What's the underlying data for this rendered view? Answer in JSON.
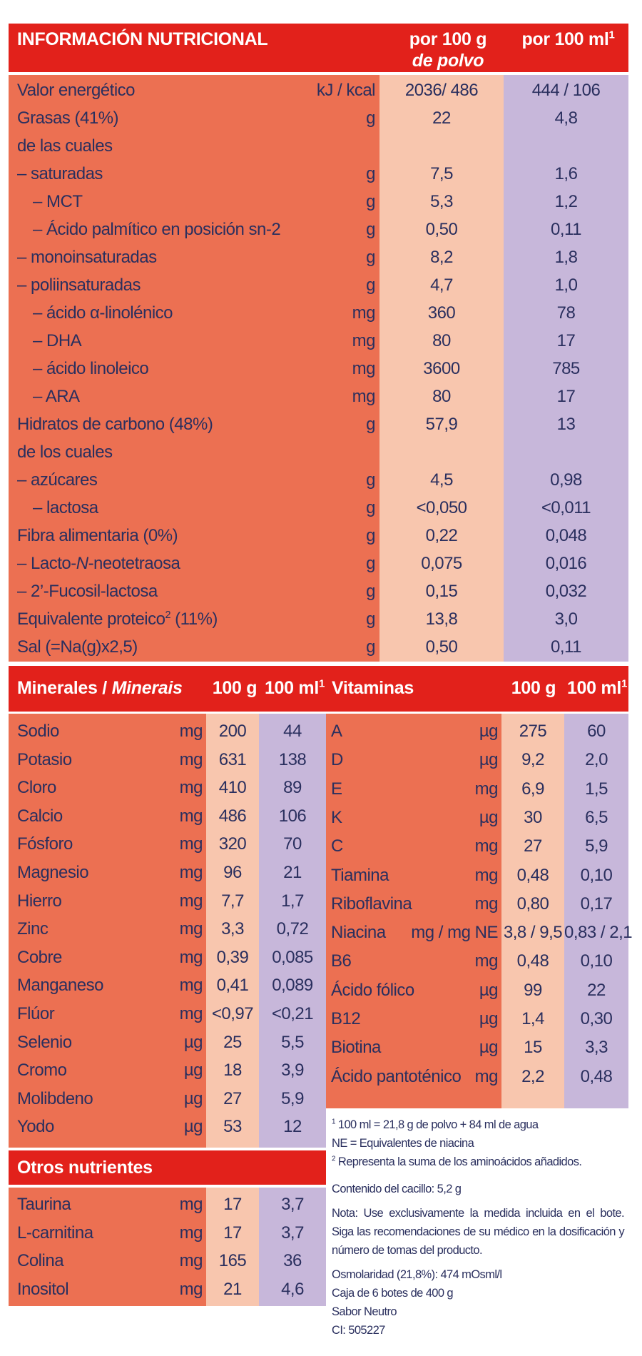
{
  "main": {
    "header": {
      "title": "INFORMACIÓN NUTRICIONAL",
      "col1a": "por 100 g",
      "col1b": "de polvo",
      "col2": "por 100 ml",
      "col2_sup": "1"
    },
    "rows": [
      {
        "label": "Valor energético",
        "unit": "kJ / kcal",
        "v100g": "2036/ 486",
        "v100ml": "444 / 106"
      },
      {
        "label": "Grasas (41%)",
        "unit": "g",
        "v100g": "22",
        "v100ml": "4,8"
      },
      {
        "label": "de las cuales",
        "unit": "",
        "v100g": "",
        "v100ml": ""
      },
      {
        "label": "– saturadas",
        "unit": "g",
        "v100g": "7,5",
        "v100ml": "1,6"
      },
      {
        "label": "– MCT",
        "unit": "g",
        "v100g": "5,3",
        "v100ml": "1,2"
      },
      {
        "label": "– Ácido palmítico en posición sn-2",
        "unit": "g",
        "v100g": "0,50",
        "v100ml": "0,11"
      },
      {
        "label": "– monoinsaturadas",
        "unit": "g",
        "v100g": "8,2",
        "v100ml": "1,8"
      },
      {
        "label": "– poliinsaturadas",
        "unit": "g",
        "v100g": "4,7",
        "v100ml": "1,0"
      },
      {
        "label": "– ácido α-linolénico",
        "unit": "mg",
        "v100g": "360",
        "v100ml": "78"
      },
      {
        "label": "– DHA",
        "unit": "mg",
        "v100g": "80",
        "v100ml": "17"
      },
      {
        "label": "– ácido linoleico",
        "unit": "mg",
        "v100g": "3600",
        "v100ml": "785"
      },
      {
        "label": "– ARA",
        "unit": "mg",
        "v100g": "80",
        "v100ml": "17"
      },
      {
        "label": "Hidratos de carbono (48%)",
        "unit": "g",
        "v100g": "57,9",
        "v100ml": "13"
      },
      {
        "label": "de los cuales",
        "unit": "",
        "v100g": "",
        "v100ml": ""
      },
      {
        "label": "– azúcares",
        "unit": "g",
        "v100g": "4,5",
        "v100ml": "0,98"
      },
      {
        "label": "– lactosa",
        "unit": "g",
        "v100g": "<0,050",
        "v100ml": "<0,011"
      },
      {
        "label": "Fibra alimentaria (0%)",
        "unit": "g",
        "v100g": "0,22",
        "v100ml": "0,048"
      },
      {
        "label": "– Lacto-N-neotetraosa",
        "unit": "g",
        "v100g": "0,075",
        "v100ml": "0,016"
      },
      {
        "label": "– 2’-Fucosil-lactosa",
        "unit": "g",
        "v100g": "0,15",
        "v100ml": "0,032"
      },
      {
        "label": "Equivalente proteico",
        "label_sup": "2",
        "label_after": " (11%)",
        "unit": "g",
        "v100g": "13,8",
        "v100ml": "3,0"
      },
      {
        "label": "Sal (=Na(g)x2,5)",
        "unit": "g",
        "v100g": "0,50",
        "v100ml": "0,11"
      }
    ]
  },
  "minerals": {
    "header": {
      "title": "Minerales / ",
      "title_it": "Minerais",
      "c1": "100 g",
      "c2": "100 ml",
      "c2_sup": "1"
    },
    "rows": [
      {
        "label": "Sodio",
        "unit": "mg",
        "v1": "200",
        "v2": "44"
      },
      {
        "label": "Potasio",
        "unit": "mg",
        "v1": "631",
        "v2": "138"
      },
      {
        "label": "Cloro",
        "unit": "mg",
        "v1": "410",
        "v2": "89"
      },
      {
        "label": "Calcio",
        "unit": "mg",
        "v1": "486",
        "v2": "106"
      },
      {
        "label": "Fósforo",
        "unit": "mg",
        "v1": "320",
        "v2": "70"
      },
      {
        "label": "Magnesio",
        "unit": "mg",
        "v1": "96",
        "v2": "21"
      },
      {
        "label": "Hierro",
        "unit": "mg",
        "v1": "7,7",
        "v2": "1,7"
      },
      {
        "label": "Zinc",
        "unit": "mg",
        "v1": "3,3",
        "v2": "0,72"
      },
      {
        "label": "Cobre",
        "unit": "mg",
        "v1": "0,39",
        "v2": "0,085"
      },
      {
        "label": "Manganeso",
        "unit": "mg",
        "v1": "0,41",
        "v2": "0,089"
      },
      {
        "label": "Flúor",
        "unit": "mg",
        "v1": "<0,97",
        "v2": "<0,21"
      },
      {
        "label": "Selenio",
        "unit": "µg",
        "v1": "25",
        "v2": "5,5"
      },
      {
        "label": "Cromo",
        "unit": "µg",
        "v1": "18",
        "v2": "3,9"
      },
      {
        "label": "Molibdeno",
        "unit": "µg",
        "v1": "27",
        "v2": "5,9"
      },
      {
        "label": "Yodo",
        "unit": "µg",
        "v1": "53",
        "v2": "12"
      }
    ]
  },
  "vitamins": {
    "header": {
      "title": "Vitaminas",
      "c1": "100 g",
      "c2": "100 ml",
      "c2_sup": "1"
    },
    "rows": [
      {
        "label": "A",
        "unit": "µg",
        "v1": "275",
        "v2": "60"
      },
      {
        "label": "D",
        "unit": "µg",
        "v1": "9,2",
        "v2": "2,0"
      },
      {
        "label": "E",
        "unit": "mg",
        "v1": "6,9",
        "v2": "1,5"
      },
      {
        "label": "K",
        "unit": "µg",
        "v1": "30",
        "v2": "6,5"
      },
      {
        "label": "C",
        "unit": "mg",
        "v1": "27",
        "v2": "5,9"
      },
      {
        "label": "Tiamina",
        "unit": "mg",
        "v1": "0,48",
        "v2": "0,10"
      },
      {
        "label": "Riboflavina",
        "unit": "mg",
        "v1": "0,80",
        "v2": "0,17"
      },
      {
        "label": "Niacina",
        "unit": "mg / mg NE",
        "v1": "3,8 / 9,5",
        "v2": "0,83 / 2,1"
      },
      {
        "label": "B6",
        "unit": "mg",
        "v1": "0,48",
        "v2": "0,10"
      },
      {
        "label": "Ácido fólico",
        "unit": "µg",
        "v1": "99",
        "v2": "22"
      },
      {
        "label": "B12",
        "unit": "µg",
        "v1": "1,4",
        "v2": "0,30"
      },
      {
        "label": "Biotina",
        "unit": "µg",
        "v1": "15",
        "v2": "3,3"
      },
      {
        "label": "Ácido pantoténico",
        "unit": "mg",
        "v1": "2,2",
        "v2": "0,48"
      }
    ]
  },
  "others": {
    "header": {
      "title": "Otros nutrientes"
    },
    "rows": [
      {
        "label": "Taurina",
        "unit": "mg",
        "v1": "17",
        "v2": "3,7"
      },
      {
        "label": "L-carnitina",
        "unit": "mg",
        "v1": "17",
        "v2": "3,7"
      },
      {
        "label": "Colina",
        "unit": "mg",
        "v1": "165",
        "v2": "36"
      },
      {
        "label": "Inositol",
        "unit": "mg",
        "v1": "21",
        "v2": "4,6"
      }
    ]
  },
  "notes": {
    "fn1_sup": "1",
    "fn1": " 100 ml = 21,8 g de polvo + 84 ml de agua",
    "ne": "NE = Equivalentes de niacina",
    "fn2_sup": "2",
    "fn2": " Representa la suma de los aminoácidos añadidos.",
    "scoop": "Contenido del cacillo: 5,2 g",
    "nota": "Nota: Use exclusivamente la medida incluida en el bote. Siga las recomendaciones de su médico en la dosificación y número de tomas del producto.",
    "osmo": "Osmolaridad (21,8%): 474 mOsml/l",
    "box": "Caja de 6 botes de 400 g",
    "flavor": "Sabor Neutro",
    "ci": "CI: 505227"
  }
}
